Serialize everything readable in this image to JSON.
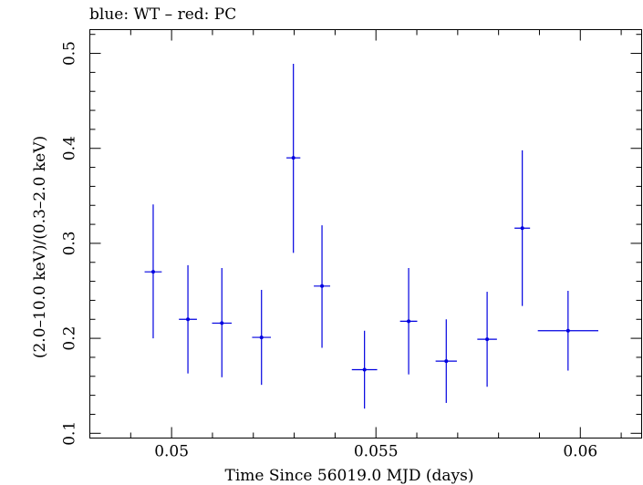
{
  "title": "blue: WT – red: PC",
  "chart_data": {
    "type": "scatter",
    "title": "blue: WT – red: PC",
    "xlabel": "Time Since 56019.0 MJD (days)",
    "ylabel": "(2.0–10.0 keV)/(0.3–2.0 keV)",
    "xlim": [
      0.048,
      0.0615
    ],
    "ylim": [
      0.095,
      0.525
    ],
    "x_ticks": [
      0.05,
      0.055,
      0.06
    ],
    "x_tick_labels": [
      "0.05",
      "0.055",
      "0.06"
    ],
    "y_ticks": [
      0.1,
      0.2,
      0.3,
      0.4,
      0.5
    ],
    "y_tick_labels": [
      "0.1",
      "0.2",
      "0.3",
      "0.4",
      "0.5"
    ],
    "grid": false,
    "series": [
      {
        "name": "WT",
        "color": "#0000e0",
        "points": [
          {
            "x": 0.04955,
            "xerr": 0.00021,
            "y": 0.27,
            "ylo": 0.2,
            "yhi": 0.341
          },
          {
            "x": 0.0504,
            "xerr": 0.00022,
            "y": 0.22,
            "ylo": 0.163,
            "yhi": 0.277
          },
          {
            "x": 0.05123,
            "xerr": 0.00024,
            "y": 0.216,
            "ylo": 0.159,
            "yhi": 0.274
          },
          {
            "x": 0.0522,
            "xerr": 0.00023,
            "y": 0.201,
            "ylo": 0.151,
            "yhi": 0.251
          },
          {
            "x": 0.05298,
            "xerr": 0.00017,
            "y": 0.39,
            "ylo": 0.29,
            "yhi": 0.489
          },
          {
            "x": 0.05368,
            "xerr": 0.0002,
            "y": 0.255,
            "ylo": 0.19,
            "yhi": 0.319
          },
          {
            "x": 0.05472,
            "xerr": 0.00031,
            "y": 0.167,
            "ylo": 0.126,
            "yhi": 0.208
          },
          {
            "x": 0.0558,
            "xerr": 0.00021,
            "y": 0.218,
            "ylo": 0.162,
            "yhi": 0.274
          },
          {
            "x": 0.05672,
            "xerr": 0.00026,
            "y": 0.176,
            "ylo": 0.132,
            "yhi": 0.22
          },
          {
            "x": 0.05772,
            "xerr": 0.00024,
            "y": 0.199,
            "ylo": 0.149,
            "yhi": 0.249
          },
          {
            "x": 0.05858,
            "xerr": 0.00019,
            "y": 0.316,
            "ylo": 0.234,
            "yhi": 0.398
          },
          {
            "x": 0.0597,
            "xerr": 0.00074,
            "y": 0.208,
            "ylo": 0.166,
            "yhi": 0.25
          }
        ]
      }
    ]
  }
}
